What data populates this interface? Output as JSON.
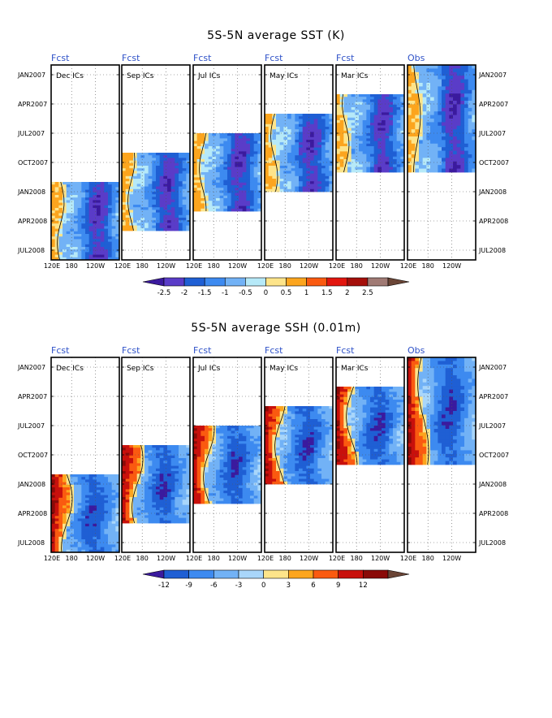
{
  "chart_data": [
    {
      "type": "heatmap",
      "title": "5S-5N average SST (K)",
      "x_ticks": [
        "120E",
        "180",
        "120W"
      ],
      "y_ticks": [
        "JAN2007",
        "APR2007",
        "JUL2007",
        "OCT2007",
        "JAN2008",
        "APR2008",
        "JUL2008"
      ],
      "panels": [
        {
          "header": "Fcst",
          "label": "Dec ICs",
          "start": "DEC2007",
          "end": "AUG2008"
        },
        {
          "header": "Fcst",
          "label": "Sep ICs",
          "start": "SEP2007",
          "end": "MAY2008"
        },
        {
          "header": "Fcst",
          "label": "Jul ICs",
          "start": "JUL2007",
          "end": "MAR2008"
        },
        {
          "header": "Fcst",
          "label": "May ICs",
          "start": "MAY2007",
          "end": "JAN2008"
        },
        {
          "header": "Fcst",
          "label": "Mar ICs",
          "start": "MAR2007",
          "end": "NOV2007"
        },
        {
          "header": "Obs",
          "label": "",
          "start": "DEC2006",
          "end": "NOV2007"
        }
      ],
      "colorbar": {
        "levels": [
          "-2.5",
          "-2",
          "-1.5",
          "-1",
          "-0.5",
          "0",
          "0.5",
          "1",
          "1.5",
          "2",
          "2.5"
        ],
        "colors": [
          "#3b1a9e",
          "#5a3cc8",
          "#1f5fd4",
          "#3d8af0",
          "#72b2f6",
          "#b6e9f8",
          "#fde48a",
          "#fca51e",
          "#fa5a10",
          "#e2160e",
          "#a50f0a",
          "#a07a74",
          "#6a4536"
        ]
      }
    },
    {
      "type": "heatmap",
      "title": "5S-5N average SSH (0.01m)",
      "x_ticks": [
        "120E",
        "180",
        "120W"
      ],
      "y_ticks": [
        "JAN2007",
        "APR2007",
        "JUL2007",
        "OCT2007",
        "JAN2008",
        "APR2008",
        "JUL2008"
      ],
      "panels": [
        {
          "header": "Fcst",
          "label": "Dec ICs",
          "start": "DEC2007",
          "end": "AUG2008"
        },
        {
          "header": "Fcst",
          "label": "Sep ICs",
          "start": "SEP2007",
          "end": "MAY2008"
        },
        {
          "header": "Fcst",
          "label": "Jul ICs",
          "start": "JUL2007",
          "end": "MAR2008"
        },
        {
          "header": "Fcst",
          "label": "May ICs",
          "start": "MAY2007",
          "end": "JAN2008"
        },
        {
          "header": "Fcst",
          "label": "Mar ICs",
          "start": "MAR2007",
          "end": "NOV2007"
        },
        {
          "header": "Obs",
          "label": "",
          "start": "DEC2006",
          "end": "NOV2007"
        }
      ],
      "colorbar": {
        "levels": [
          "-12",
          "-9",
          "-6",
          "-3",
          "0",
          "3",
          "6",
          "9",
          "12"
        ],
        "colors": [
          "#3b1a9e",
          "#1f5fd4",
          "#3d8af0",
          "#72b2f6",
          "#a9d6fa",
          "#fde48a",
          "#fca51e",
          "#fa5a10",
          "#c8100c",
          "#8a0a08",
          "#6a4536"
        ]
      }
    }
  ]
}
